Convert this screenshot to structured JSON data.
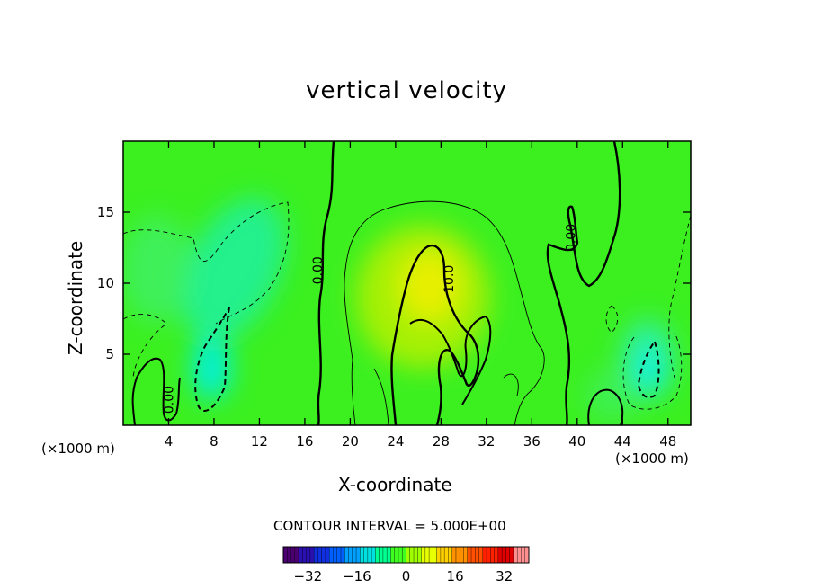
{
  "chart_data": {
    "type": "heatmap",
    "title": "vertical velocity",
    "xlabel": "X-coordinate",
    "ylabel": "Z-coordinate",
    "x_unit": "(×1000 m)",
    "xlim": [
      0,
      50
    ],
    "ylim": [
      0,
      20
    ],
    "x_ticks": [
      4,
      8,
      12,
      16,
      20,
      24,
      28,
      32,
      36,
      40,
      44,
      48
    ],
    "y_ticks": [
      5,
      10,
      15
    ],
    "contour_interval_text": "CONTOUR INTERVAL = 5.000E+00",
    "colorbar": {
      "range": [
        -40,
        40
      ],
      "ticks": [
        -32,
        -16,
        0,
        16,
        32
      ],
      "colors": [
        "#4a0070",
        "#2a10b0",
        "#1030e0",
        "#0060ff",
        "#00a0ff",
        "#00e0e0",
        "#00ff90",
        "#40ff20",
        "#a0ff00",
        "#e8ff00",
        "#ffd000",
        "#ff9000",
        "#ff5000",
        "#ff2000",
        "#e00000",
        "#ff9090"
      ]
    },
    "contour_labels": [
      {
        "text": "0.00",
        "x": 17.5,
        "y": 10.9
      },
      {
        "text": "10.0",
        "x": 29.1,
        "y": 10.3
      },
      {
        "text": "0.00",
        "x": 39.8,
        "y": 13.2
      },
      {
        "text": "0.00",
        "x": 4.4,
        "y": 1.8
      }
    ],
    "field_features": [
      {
        "kind": "updraft",
        "x": 27.5,
        "y": 10,
        "peak": 12
      },
      {
        "kind": "downdraft",
        "x": 8,
        "y": 3.5,
        "peak": -9
      },
      {
        "kind": "downdraft",
        "x": 10,
        "y": 12,
        "peak": -6
      },
      {
        "kind": "downdraft",
        "x": 46,
        "y": 3.5,
        "peak": -9
      }
    ]
  }
}
